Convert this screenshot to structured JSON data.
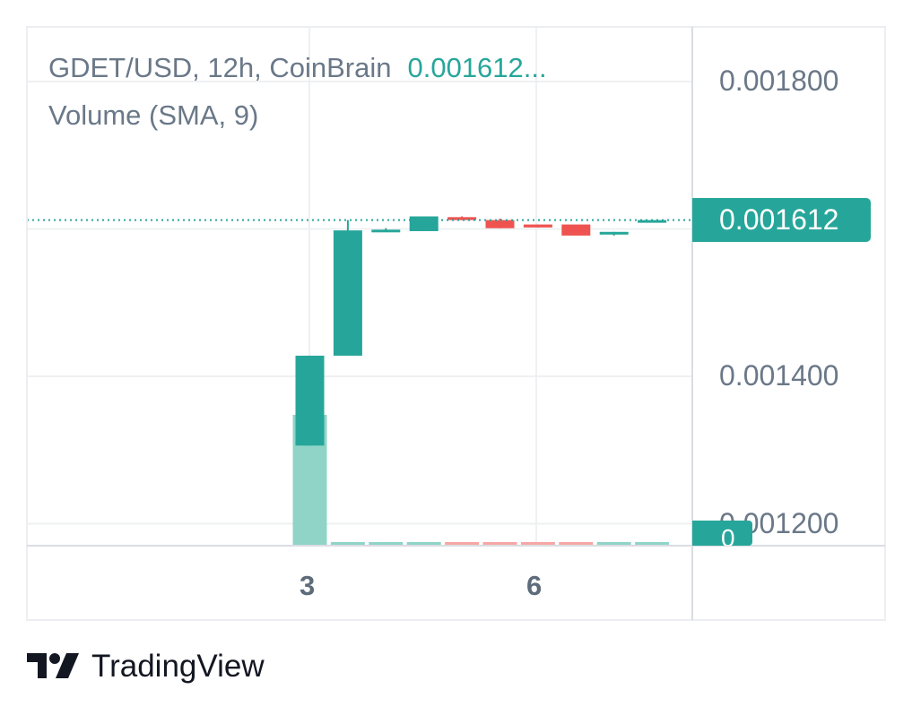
{
  "legend": {
    "symbol_line": "GDET/USD, 12h, CoinBrain",
    "last_value": "0.001612...",
    "volume_line": "Volume (SMA, 9)"
  },
  "price_axis": {
    "labels": [
      "0.001800",
      "0.001400",
      "0.001200"
    ],
    "current_price_label": "0.001612",
    "volume_label": "0"
  },
  "time_axis": {
    "labels": [
      "3",
      "6"
    ]
  },
  "brand": {
    "name": "TradingView",
    "logo_icon": "tradingview-logo-icon"
  },
  "colors": {
    "up": "#26a69a",
    "down": "#ef5350",
    "volume_up": "#8fd4c7",
    "volume_down": "#f6a7a5",
    "text": "#6a7888",
    "grid": "#eef0f2"
  },
  "chart_data": {
    "type": "candlestick",
    "y_range": [
      0.00118,
      0.00185
    ],
    "price_ticks": [
      0.0018,
      0.0016,
      0.0014,
      0.0012
    ],
    "current_price": 0.001612,
    "candles": [
      {
        "open": 0.001306,
        "high": 0.001428,
        "low": 0.001306,
        "close": 0.001428
      },
      {
        "open": 0.001428,
        "high": 0.001612,
        "low": 0.001428,
        "close": 0.001598
      },
      {
        "open": 0.001597,
        "high": 0.001601,
        "low": 0.001597,
        "close": 0.001599
      },
      {
        "open": 0.001597,
        "high": 0.001617,
        "low": 0.001597,
        "close": 0.001617
      },
      {
        "open": 0.001616,
        "high": 0.001617,
        "low": 0.001612,
        "close": 0.001612
      },
      {
        "open": 0.001612,
        "high": 0.001614,
        "low": 0.001601,
        "close": 0.001601
      },
      {
        "open": 0.001606,
        "high": 0.001606,
        "low": 0.001602,
        "close": 0.001602
      },
      {
        "open": 0.001606,
        "high": 0.001606,
        "low": 0.001591,
        "close": 0.001591
      },
      {
        "open": 0.001593,
        "high": 0.001596,
        "low": 0.001591,
        "close": 0.001596
      },
      {
        "open": 0.00161,
        "high": 0.001612,
        "low": 0.00161,
        "close": 0.001612
      }
    ],
    "volume_relative": [
      1.0,
      0.02,
      0.02,
      0.02,
      0.02,
      0.02,
      0.02,
      0.02,
      0.02,
      0.02
    ]
  }
}
